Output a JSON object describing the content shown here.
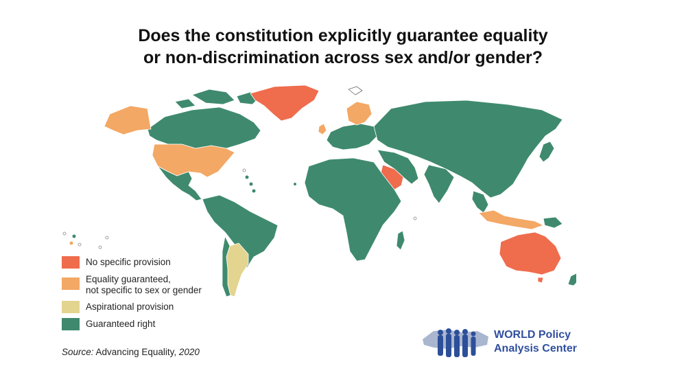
{
  "title": {
    "line1": "Does the constitution explicitly guarantee equality",
    "line2": "or non-discrimination across sex and/or gender?"
  },
  "legend": [
    {
      "label": "No specific provision",
      "color": "#ef6c4d"
    },
    {
      "label": "Equality guaranteed,\nnot specific to sex or gender",
      "color": "#f3a865"
    },
    {
      "label": "Aspirational provision",
      "color": "#e3d48f"
    },
    {
      "label": "Guaranteed right",
      "color": "#3f8a6e"
    }
  ],
  "source": {
    "prefix": "Source:",
    "text": " Advancing Equality, ",
    "year": "2020"
  },
  "logo": {
    "line1": "WORLD Policy",
    "line2": "Analysis Center",
    "icon": "people-silhouettes-world-icon"
  },
  "map_categories": {
    "greenland": "No specific provision",
    "australia": "No specific provision",
    "saudi_arabia": "No specific provision",
    "usa": "Equality guaranteed, not specific to sex or gender",
    "alaska": "Equality guaranteed, not specific to sex or gender",
    "scandinavia": "Equality guaranteed, not specific to sex or gender",
    "indonesia": "Equality guaranteed, not specific to sex or gender",
    "argentina": "Aspirational provision"
  }
}
